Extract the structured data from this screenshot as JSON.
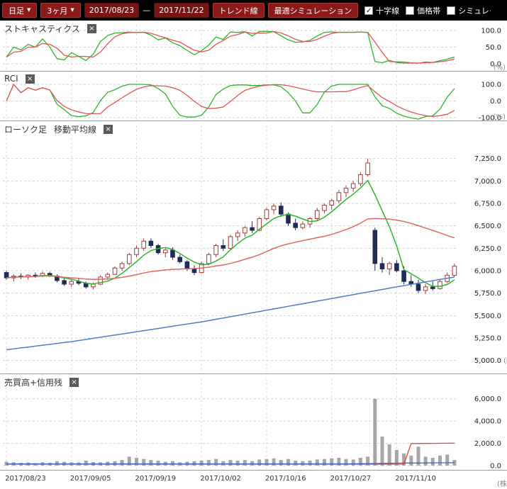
{
  "toolbar": {
    "interval_label": "日足",
    "range_label": "3ヶ月",
    "date_from": "2017/08/23",
    "date_separator": "—",
    "date_to": "2017/11/22",
    "trend_button": "トレンド線",
    "sim_button": "最適シミュレーション",
    "checkboxes": [
      {
        "label": "十字線",
        "checked": true
      },
      {
        "label": "価格帯",
        "checked": false
      },
      {
        "label": "シミュレーション",
        "checked": false
      }
    ]
  },
  "x_axis": {
    "n_points": 63,
    "tick_indices": [
      0,
      9,
      18,
      27,
      36,
      45,
      54
    ],
    "labels": [
      "2017/08/23",
      "2017/09/05",
      "2017/09/19",
      "2017/10/02",
      "2017/10/16",
      "2017/10/27",
      "2017/11/10"
    ]
  },
  "chart_data": [
    {
      "id": "stochastics",
      "type": "line",
      "title": "ストキャスティクス",
      "ylim": [
        0,
        100
      ],
      "yticks": [
        {
          "v": 100,
          "label": "100.0"
        },
        {
          "v": 50,
          "label": "50.0"
        },
        {
          "v": 0,
          "label": "0.0"
        }
      ],
      "unit": "(%)",
      "unit_pos": "below",
      "series": [
        {
          "name": "percent_k",
          "color": "#2eb52e",
          "derive": {
            "indicator": "stochastic_k",
            "period": 14
          }
        },
        {
          "name": "percent_d",
          "color": "#e05555",
          "derive": {
            "indicator": "stochastic_d",
            "period": 14,
            "smooth": 3
          }
        }
      ]
    },
    {
      "id": "rci",
      "type": "line",
      "title": "RCI",
      "ylim": [
        -100,
        100
      ],
      "yticks": [
        {
          "v": 100,
          "label": "100.0"
        },
        {
          "v": 0,
          "label": "0.0"
        },
        {
          "v": -100,
          "label": "-100.0"
        }
      ],
      "unit": "(%)",
      "unit_pos": "below",
      "series": [
        {
          "name": "rci_short",
          "color": "#2eb52e",
          "derive": {
            "indicator": "rci",
            "period": 7
          }
        },
        {
          "name": "rci_long",
          "color": "#e05555",
          "derive": {
            "indicator": "rci",
            "period": 13
          }
        }
      ]
    },
    {
      "id": "main",
      "type": "candlestick",
      "title": "ローソク足",
      "subtitle": "移動平均線",
      "ylim": [
        4950,
        7350
      ],
      "yticks": [
        {
          "v": 7250,
          "label": "7,250.0"
        },
        {
          "v": 7000,
          "label": "7,000.0"
        },
        {
          "v": 6750,
          "label": "6,750.0"
        },
        {
          "v": 6500,
          "label": "6,500.0"
        },
        {
          "v": 6250,
          "label": "6,250.0"
        },
        {
          "v": 6000,
          "label": "6,000.0"
        },
        {
          "v": 5750,
          "label": "5,750.0"
        },
        {
          "v": 5500,
          "label": "5,500.0"
        },
        {
          "v": 5250,
          "label": "5,250.0"
        },
        {
          "v": 5000,
          "label": "5,000.0"
        }
      ],
      "unit": "(円)",
      "unit_pos": "inline",
      "up_color": {
        "fill": "#ffffff",
        "stroke": "#a03c3c"
      },
      "down_color": {
        "fill": "#1f2c55",
        "stroke": "#1f2c55"
      },
      "ohlc": [
        [
          5980,
          6000,
          5900,
          5920
        ],
        [
          5920,
          5960,
          5880,
          5940
        ],
        [
          5940,
          5970,
          5910,
          5930
        ],
        [
          5930,
          5960,
          5900,
          5950
        ],
        [
          5950,
          5980,
          5920,
          5940
        ],
        [
          5940,
          5990,
          5930,
          5970
        ],
        [
          5970,
          5990,
          5930,
          5940
        ],
        [
          5940,
          5960,
          5870,
          5890
        ],
        [
          5890,
          5920,
          5830,
          5850
        ],
        [
          5850,
          5900,
          5820,
          5880
        ],
        [
          5880,
          5920,
          5840,
          5860
        ],
        [
          5860,
          5880,
          5800,
          5820
        ],
        [
          5820,
          5870,
          5790,
          5850
        ],
        [
          5850,
          5950,
          5840,
          5930
        ],
        [
          5930,
          5980,
          5900,
          5960
        ],
        [
          5960,
          6050,
          5950,
          6030
        ],
        [
          6030,
          6100,
          6000,
          6080
        ],
        [
          6080,
          6200,
          6060,
          6180
        ],
        [
          6180,
          6280,
          6150,
          6250
        ],
        [
          6250,
          6360,
          6220,
          6330
        ],
        [
          6330,
          6360,
          6250,
          6280
        ],
        [
          6280,
          6300,
          6180,
          6200
        ],
        [
          6200,
          6250,
          6150,
          6230
        ],
        [
          6230,
          6260,
          6120,
          6150
        ],
        [
          6150,
          6180,
          6080,
          6100
        ],
        [
          6100,
          6120,
          6000,
          6020
        ],
        [
          6020,
          6060,
          5950,
          5980
        ],
        [
          5980,
          6100,
          5970,
          6080
        ],
        [
          6080,
          6200,
          6060,
          6180
        ],
        [
          6180,
          6300,
          6150,
          6280
        ],
        [
          6280,
          6350,
          6220,
          6250
        ],
        [
          6250,
          6400,
          6240,
          6380
        ],
        [
          6380,
          6450,
          6330,
          6420
        ],
        [
          6420,
          6500,
          6380,
          6480
        ],
        [
          6480,
          6550,
          6420,
          6450
        ],
        [
          6450,
          6600,
          6440,
          6580
        ],
        [
          6580,
          6700,
          6560,
          6680
        ],
        [
          6680,
          6750,
          6630,
          6720
        ],
        [
          6720,
          6760,
          6600,
          6630
        ],
        [
          6630,
          6650,
          6500,
          6530
        ],
        [
          6530,
          6580,
          6450,
          6480
        ],
        [
          6480,
          6550,
          6460,
          6520
        ],
        [
          6520,
          6600,
          6480,
          6580
        ],
        [
          6580,
          6700,
          6560,
          6670
        ],
        [
          6670,
          6750,
          6640,
          6730
        ],
        [
          6730,
          6800,
          6680,
          6780
        ],
        [
          6780,
          6900,
          6750,
          6870
        ],
        [
          6870,
          6950,
          6820,
          6920
        ],
        [
          6920,
          7000,
          6880,
          6970
        ],
        [
          6970,
          7100,
          6940,
          7070
        ],
        [
          7070,
          7250,
          7050,
          7200
        ],
        [
          6450,
          6480,
          6000,
          6080
        ],
        [
          6080,
          6150,
          5980,
          6020
        ],
        [
          6020,
          6100,
          5950,
          6080
        ],
        [
          6080,
          6120,
          5980,
          6000
        ],
        [
          6000,
          6050,
          5850,
          5880
        ],
        [
          5880,
          5950,
          5820,
          5850
        ],
        [
          5850,
          5900,
          5750,
          5780
        ],
        [
          5780,
          5850,
          5740,
          5820
        ],
        [
          5820,
          5880,
          5780,
          5800
        ],
        [
          5800,
          5900,
          5790,
          5880
        ],
        [
          5880,
          5980,
          5860,
          5950
        ],
        [
          5950,
          6080,
          5930,
          6050
        ]
      ],
      "moving_averages": [
        {
          "name": "ma_short",
          "color": "#2eb52e",
          "derive": {
            "indicator": "sma",
            "period": 5
          }
        },
        {
          "name": "ma_mid",
          "color": "#e06666",
          "derive": {
            "indicator": "sma",
            "period": 25
          }
        },
        {
          "name": "ma_long",
          "color": "#4d7fc4",
          "points": [
            [
              0,
              5120
            ],
            [
              9,
              5210
            ],
            [
              18,
              5320
            ],
            [
              27,
              5430
            ],
            [
              36,
              5560
            ],
            [
              45,
              5690
            ],
            [
              54,
              5820
            ],
            [
              62,
              5930
            ]
          ]
        }
      ]
    },
    {
      "id": "volume",
      "type": "bar",
      "title": "売買高+信用残",
      "ylim": [
        0,
        6300
      ],
      "yticks": [
        {
          "v": 6000,
          "label": "6,000.0"
        },
        {
          "v": 4000,
          "label": "4,000.0"
        },
        {
          "v": 2000,
          "label": "2,000.0"
        },
        {
          "v": 0,
          "label": "0.0"
        }
      ],
      "unit": "(株)",
      "unit_pos": "axis",
      "bars": {
        "color": "#a6a6a6",
        "values": [
          350,
          300,
          250,
          280,
          220,
          300,
          260,
          400,
          350,
          300,
          280,
          450,
          320,
          300,
          350,
          400,
          500,
          800,
          700,
          600,
          500,
          450,
          350,
          400,
          300,
          350,
          400,
          450,
          500,
          600,
          400,
          500,
          450,
          500,
          400,
          550,
          600,
          650,
          500,
          600,
          450,
          400,
          450,
          550,
          600,
          650,
          700,
          600,
          550,
          700,
          800,
          6000,
          2600,
          1900,
          1400,
          1100,
          900,
          1700,
          800,
          700,
          900,
          1000,
          500
        ]
      },
      "lines": [
        {
          "name": "red_line",
          "color": "#dd4444",
          "points": [
            [
              0,
              130
            ],
            [
              55,
              130
            ],
            [
              56,
              1980
            ],
            [
              62,
              2020
            ]
          ]
        },
        {
          "name": "blue_line",
          "color": "#4466cc",
          "points": [
            [
              0,
              160
            ],
            [
              48,
              160
            ],
            [
              55,
              230
            ],
            [
              62,
              260
            ]
          ]
        }
      ]
    }
  ]
}
